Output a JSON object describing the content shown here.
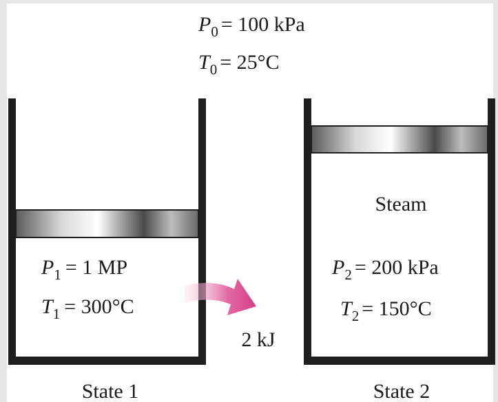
{
  "ambient": {
    "pressure": {
      "symbol": "P",
      "sub": "0",
      "rest": "= 100 kPa"
    },
    "temperature": {
      "symbol": "T",
      "sub": "0",
      "rest": "= 25°C"
    }
  },
  "state1": {
    "pressure": {
      "symbol": "P",
      "sub": "1",
      "rest": "= 1 MP"
    },
    "temperature": {
      "symbol": "T",
      "sub": "1",
      "rest": "= 300°C"
    },
    "label": "State 1"
  },
  "heat": "2 kJ",
  "state2": {
    "substance": "Steam",
    "pressure": {
      "symbol": "P",
      "sub": "2",
      "rest": "= 200 kPa"
    },
    "temperature": {
      "symbol": "T",
      "sub": "2",
      "rest": "= 150°C"
    },
    "label": "State 2"
  }
}
